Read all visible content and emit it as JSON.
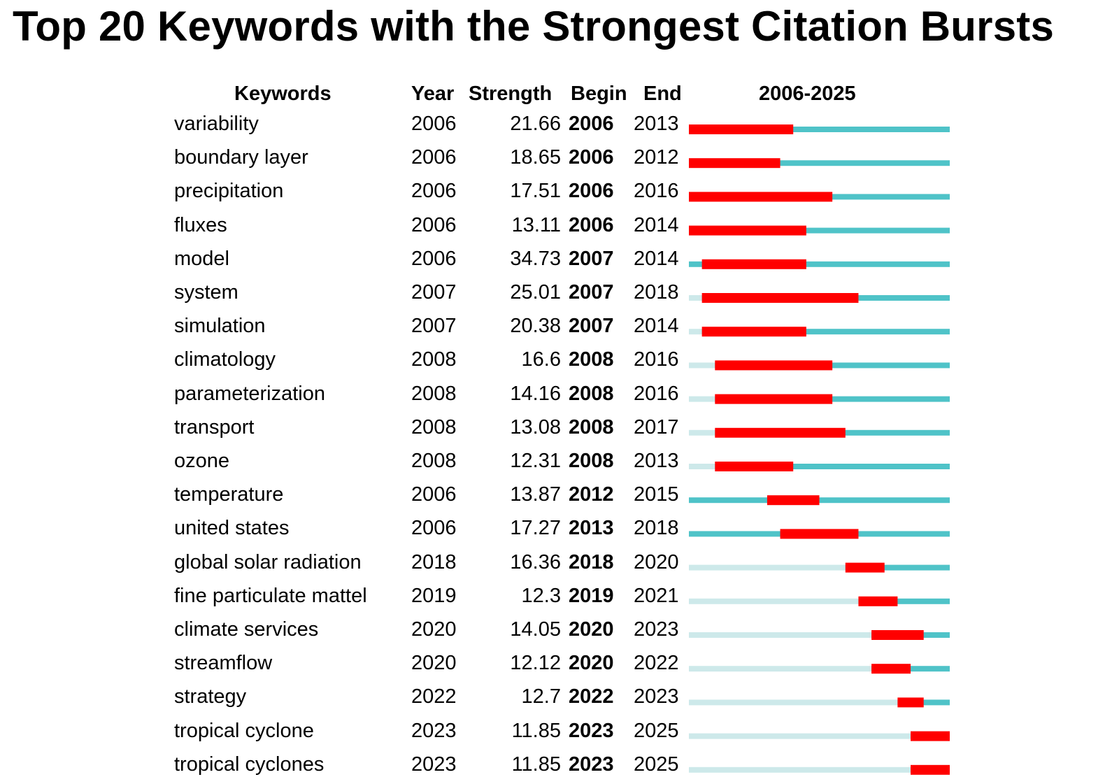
{
  "chart_data": {
    "type": "table",
    "title": "Top 20 Keywords with the Strongest Citation Bursts",
    "columns": [
      "Keywords",
      "Year",
      "Strength",
      "Begin",
      "End",
      "2006-2025"
    ],
    "timeline": {
      "start": 2006,
      "end": 2025
    },
    "colors": {
      "burst": "#ff0000",
      "active": "#4fc3c8",
      "inactive": "#cde9ea"
    },
    "rows": [
      {
        "keyword": "variability",
        "year": "2006",
        "strength": "21.66",
        "begin": "2006",
        "end": "2013"
      },
      {
        "keyword": "boundary layer",
        "year": "2006",
        "strength": "18.65",
        "begin": "2006",
        "end": "2012"
      },
      {
        "keyword": "precipitation",
        "year": "2006",
        "strength": "17.51",
        "begin": "2006",
        "end": "2016"
      },
      {
        "keyword": "fluxes",
        "year": "2006",
        "strength": "13.11",
        "begin": "2006",
        "end": "2014"
      },
      {
        "keyword": "model",
        "year": "2006",
        "strength": "34.73",
        "begin": "2007",
        "end": "2014"
      },
      {
        "keyword": "system",
        "year": "2007",
        "strength": "25.01",
        "begin": "2007",
        "end": "2018"
      },
      {
        "keyword": "simulation",
        "year": "2007",
        "strength": "20.38",
        "begin": "2007",
        "end": "2014"
      },
      {
        "keyword": "climatology",
        "year": "2008",
        "strength": "16.6",
        "begin": "2008",
        "end": "2016"
      },
      {
        "keyword": "parameterization",
        "year": "2008",
        "strength": "14.16",
        "begin": "2008",
        "end": "2016"
      },
      {
        "keyword": "transport",
        "year": "2008",
        "strength": "13.08",
        "begin": "2008",
        "end": "2017"
      },
      {
        "keyword": "ozone",
        "year": "2008",
        "strength": "12.31",
        "begin": "2008",
        "end": "2013"
      },
      {
        "keyword": "temperature",
        "year": "2006",
        "strength": "13.87",
        "begin": "2012",
        "end": "2015"
      },
      {
        "keyword": "united states",
        "year": "2006",
        "strength": "17.27",
        "begin": "2013",
        "end": "2018"
      },
      {
        "keyword": "global solar radiation",
        "year": "2018",
        "strength": "16.36",
        "begin": "2018",
        "end": "2020"
      },
      {
        "keyword": "fine particulate mattel",
        "year": "2019",
        "strength": "12.3",
        "begin": "2019",
        "end": "2021"
      },
      {
        "keyword": "climate services",
        "year": "2020",
        "strength": "14.05",
        "begin": "2020",
        "end": "2023"
      },
      {
        "keyword": "streamflow",
        "year": "2020",
        "strength": "12.12",
        "begin": "2020",
        "end": "2022"
      },
      {
        "keyword": "strategy",
        "year": "2022",
        "strength": "12.7",
        "begin": "2022",
        "end": "2023"
      },
      {
        "keyword": "tropical cyclone",
        "year": "2023",
        "strength": "11.85",
        "begin": "2023",
        "end": "2025"
      },
      {
        "keyword": "tropical cyclones",
        "year": "2023",
        "strength": "11.85",
        "begin": "2023",
        "end": "2025"
      }
    ]
  }
}
